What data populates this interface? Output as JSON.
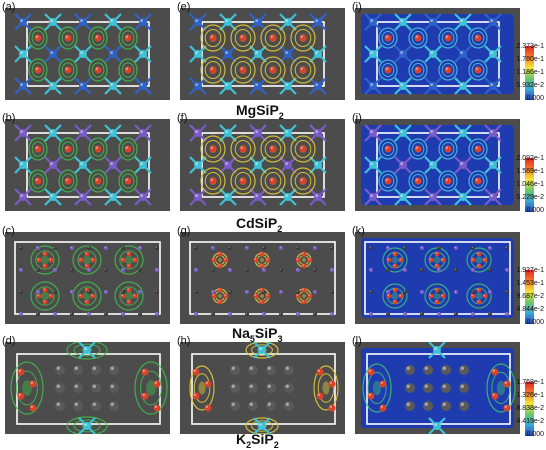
{
  "panel_labels": [
    "(a)",
    "(e)",
    "(i)",
    "(b)",
    "(f)",
    "(j)",
    "(c)",
    "(g)",
    "(k)",
    "(d)",
    "(h)",
    "(l)"
  ],
  "compounds": [
    {
      "name": "MgSiP",
      "sub": "2"
    },
    {
      "name": "CdSiP",
      "sub": "2"
    },
    {
      "name": "Na",
      "sub": "5",
      "rest": "SiP",
      "sub2": "3"
    },
    {
      "name": "K",
      "sub": "2",
      "rest": "SiP",
      "sub2": "2"
    }
  ],
  "colorbars": [
    {
      "ticks": [
        "2.373e-1",
        "1.780e-1",
        "1.186e-1",
        "5.932e-2",
        "0.000"
      ]
    },
    {
      "ticks": [
        "2.092e-1",
        "1.569e-1",
        "1.046e-1",
        "5.229e-2",
        "0.000"
      ]
    },
    {
      "ticks": [
        "1.937e-1",
        "1.453e-1",
        "9.687e-2",
        "4.844e-2",
        "0.000"
      ]
    },
    {
      "ticks": [
        "1.768e-1",
        "1.326e-1",
        "8.838e-2",
        "4.419e-2",
        "0.000"
      ]
    }
  ],
  "colors": {
    "background": "#4c4c4c",
    "green_density": "#3fbf4a",
    "yellow_density": "#d8c23a",
    "blue_field": "#1f3bb0",
    "red_atom": "#d9432a",
    "cyan_atom": "#3fc2d6",
    "blue_atom": "#2f63c9",
    "purple_atom": "#7a5cc8",
    "gray_atom": "#3a3a3a"
  }
}
